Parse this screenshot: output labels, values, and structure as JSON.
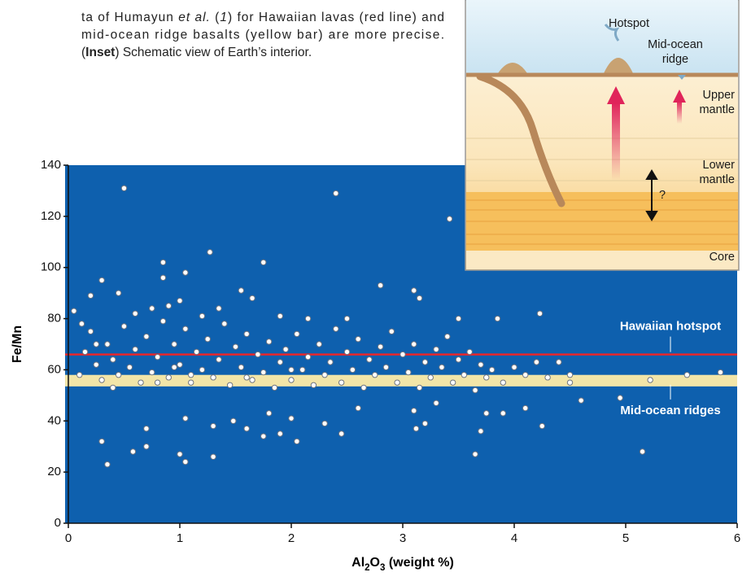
{
  "caption": {
    "lines": [
      [
        {
          "text": "ta of Humayun "
        },
        {
          "text": "et al.",
          "style": "italic"
        },
        {
          "text": " ("
        },
        {
          "text": "1",
          "style": "italic"
        },
        {
          "text": ") for Hawaiian lavas (red line) and"
        }
      ],
      [
        {
          "text": "mid-ocean ridge basalts (yellow bar) are more precise."
        }
      ],
      [
        {
          "text": "("
        },
        {
          "text": "Inset",
          "style": "bold"
        },
        {
          "text": ") Schematic view of Earth’s interior."
        }
      ]
    ]
  },
  "chart_data": {
    "type": "scatter",
    "x_label": [
      {
        "text": "Al"
      },
      {
        "text": "2",
        "style": "sub"
      },
      {
        "text": "O"
      },
      {
        "text": "3",
        "style": "sub"
      },
      {
        "text": " (weight %)"
      }
    ],
    "y_label": "Fe/Mn",
    "x": [
      0.5,
      2.4,
      3.42,
      1.27,
      0.85,
      1.75,
      1.05,
      0.85,
      0.3,
      2.8,
      1.55,
      3.1,
      0.45,
      0.2,
      3.15,
      1.65,
      1.0,
      0.05,
      4.23,
      0.75,
      3.5,
      3.85,
      2.5,
      1.9,
      2.15,
      0.3,
      0.35,
      0.58,
      0.7,
      0.7,
      1.0,
      1.05,
      1.3,
      1.05,
      1.3,
      1.48,
      1.6,
      1.75,
      1.8,
      1.9,
      2.0,
      2.05,
      2.3,
      2.45,
      2.6,
      3.1,
      3.12,
      3.2,
      3.3,
      3.65,
      3.7,
      3.75,
      3.9,
      4.1,
      4.25,
      4.6,
      4.95,
      5.15,
      5.22,
      5.55,
      5.85,
      4.5,
      4.4,
      4.5,
      0.1,
      0.15,
      0.2,
      0.25,
      0.3,
      0.35,
      0.4,
      0.45,
      0.5,
      0.55,
      0.6,
      0.65,
      0.7,
      0.75,
      0.8,
      0.85,
      0.9,
      0.95,
      1.0,
      1.05,
      1.1,
      1.15,
      1.2,
      1.25,
      1.3,
      1.35,
      1.4,
      1.45,
      1.5,
      1.55,
      1.6,
      1.65,
      1.7,
      1.75,
      1.8,
      1.85,
      1.9,
      1.95,
      2.0,
      2.05,
      2.1,
      2.15,
      2.2,
      2.25,
      2.3,
      2.35,
      2.4,
      2.45,
      2.5,
      2.55,
      2.6,
      2.65,
      2.7,
      2.75,
      2.8,
      2.85,
      2.9,
      2.95,
      3.0,
      3.05,
      3.1,
      3.15,
      3.2,
      3.25,
      3.3,
      3.35,
      3.4,
      3.45,
      3.5,
      3.55,
      3.6,
      3.65,
      3.7,
      3.75,
      3.8,
      3.9,
      4.0,
      4.1,
      4.2,
      4.3,
      0.12,
      0.6,
      0.9,
      1.2,
      1.35,
      2.0,
      0.4,
      0.8,
      1.1,
      1.6,
      0.25,
      0.95
    ],
    "y": [
      131,
      129,
      119,
      106,
      102,
      102,
      98,
      96,
      95,
      93,
      91,
      91,
      90,
      89,
      88,
      88,
      87,
      83,
      82,
      84,
      80,
      80,
      80,
      81,
      80,
      32,
      23,
      28,
      30,
      37,
      27,
      24,
      26,
      41,
      38,
      40,
      37,
      34,
      43,
      35,
      41,
      32,
      39,
      35,
      45,
      44,
      37,
      39,
      47,
      27,
      36,
      43,
      43,
      45,
      38,
      48,
      49,
      28,
      56,
      58,
      59,
      58,
      63,
      55,
      58,
      67,
      75,
      62,
      56,
      70,
      64,
      58,
      77,
      61,
      68,
      55,
      73,
      59,
      65,
      79,
      57,
      70,
      62,
      76,
      55,
      67,
      60,
      72,
      57,
      64,
      78,
      54,
      69,
      61,
      74,
      56,
      66,
      59,
      71,
      53,
      63,
      68,
      56,
      74,
      60,
      65,
      54,
      70,
      58,
      63,
      76,
      55,
      67,
      60,
      72,
      53,
      64,
      58,
      69,
      61,
      75,
      55,
      66,
      59,
      70,
      53,
      63,
      57,
      68,
      61,
      73,
      55,
      64,
      58,
      67,
      52,
      62,
      57,
      60,
      55,
      61,
      58,
      63,
      57,
      78,
      82,
      85,
      81,
      84,
      60,
      53,
      55,
      58,
      57,
      70,
      61
    ],
    "point_color": "#ffffff",
    "background": "#0e60ae",
    "xlim": [
      0,
      6
    ],
    "ylim": [
      0,
      140
    ],
    "xticks": [
      0,
      1,
      2,
      3,
      4,
      5,
      6
    ],
    "yticks": [
      0,
      20,
      40,
      60,
      80,
      100,
      120,
      140
    ],
    "reference_bands": [
      {
        "label": "Mid-ocean ridges",
        "from": 53.5,
        "to": 58,
        "color": "#f2e5a8"
      }
    ],
    "reference_lines": [
      {
        "label": "Hawaiian hotspot",
        "value": 66,
        "color": "#e8262b"
      }
    ]
  },
  "inset": {
    "hotspot": "Hotspot",
    "ridge": [
      "Mid-ocean",
      "ridge"
    ],
    "upper": [
      "Upper",
      "mantle"
    ],
    "lower": [
      "Lower",
      "mantle"
    ],
    "question": "?",
    "core": "Core"
  }
}
